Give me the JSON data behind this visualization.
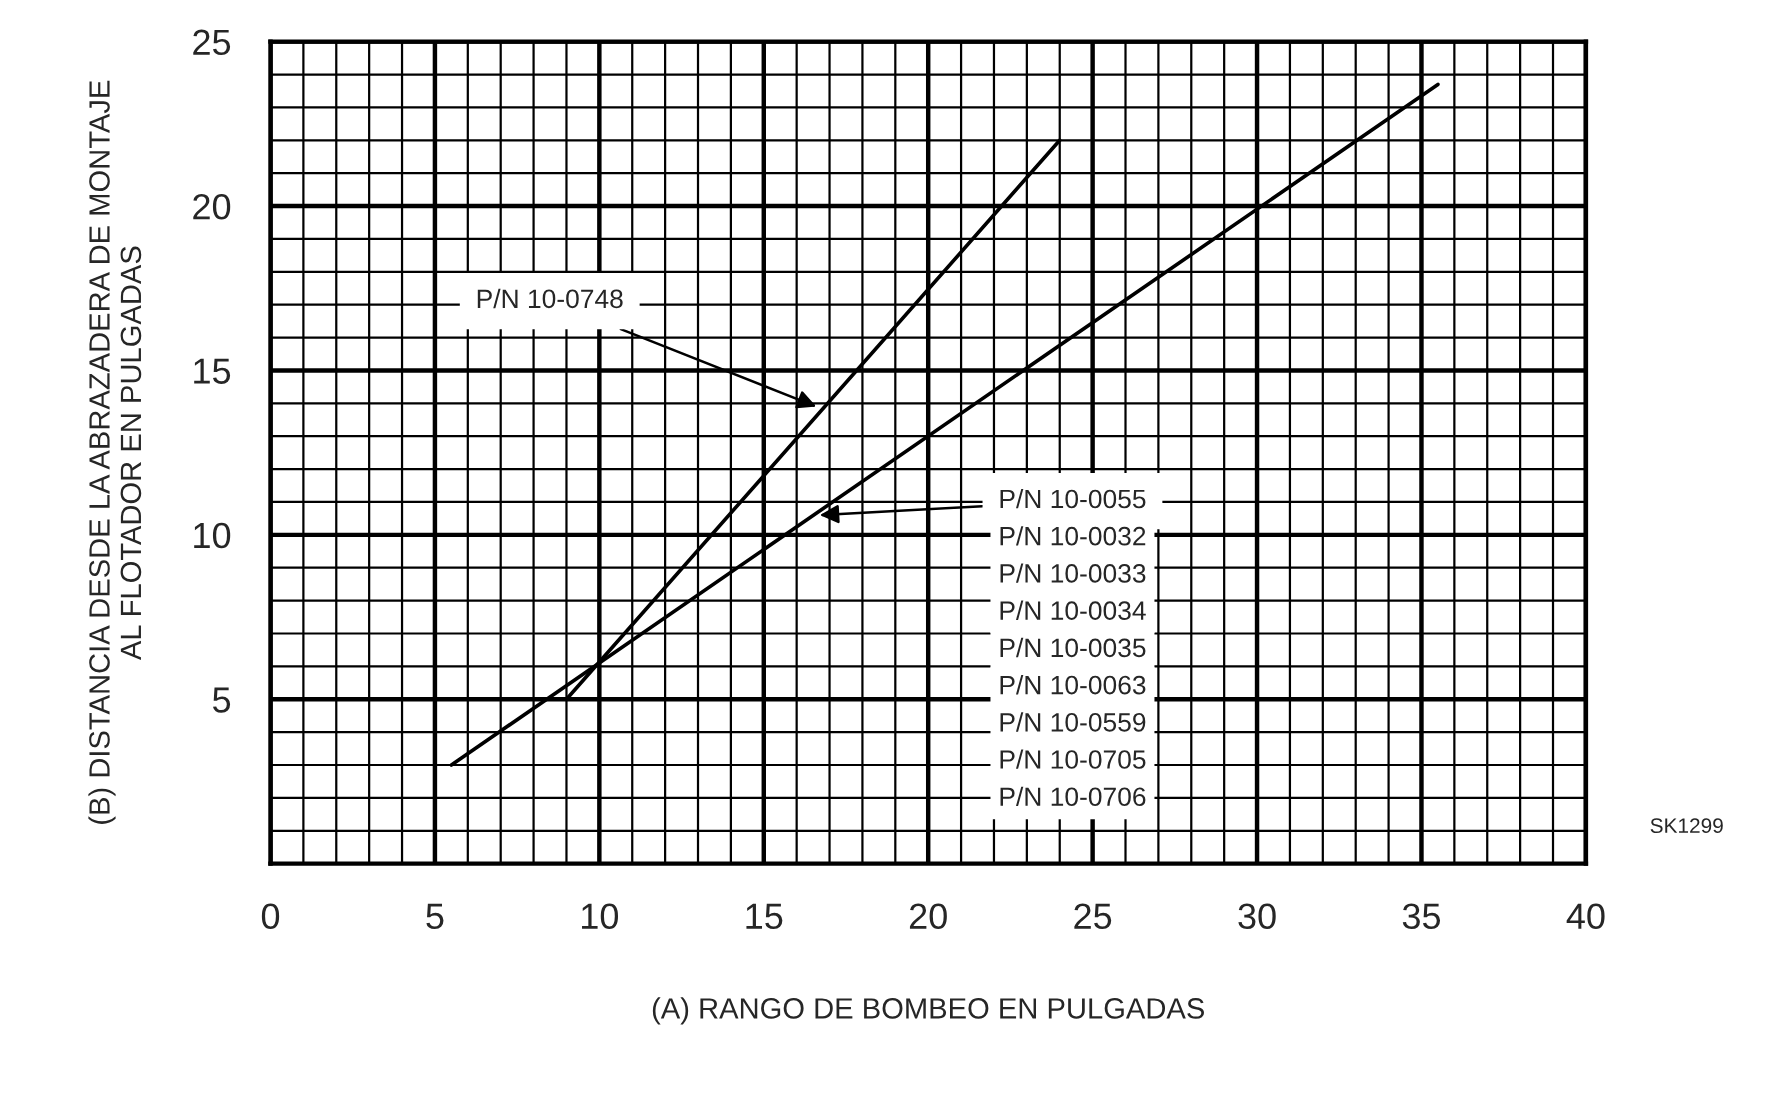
{
  "chart_data": {
    "type": "line",
    "xlabel": "(A) RANGO DE BOMBEO EN PULGADAS",
    "ylabel": "(B) DISTANCIA DESDE LA ABRAZADERA DE MONTAJE\nAL FLOTADOR EN PULGADAS",
    "series": [
      {
        "color": "#000000",
        "x": [
          9,
          24
        ],
        "values": [
          5,
          22
        ]
      },
      {
        "color": "#000000",
        "x": [
          5.5,
          35.5
        ],
        "values": [
          3,
          23.7
        ]
      }
    ],
    "xlim": [
      0,
      40
    ],
    "xticks": [
      0,
      5,
      10,
      15,
      20,
      25,
      30,
      35,
      40
    ],
    "ylim": [
      0,
      25
    ],
    "yticks": [
      5,
      10,
      15,
      20,
      25
    ],
    "grid": true,
    "marker": "none",
    "line_style": "solid",
    "annotations": [
      "SK1299",
      {
        "text": "P/N 10-0748",
        "x": 16.6,
        "y": 13.9
      },
      {
        "text": "P/N 10-0055",
        "x": 16.7,
        "y": 10.6
      },
      "P/N 10-0032",
      "P/N 10-0033",
      "P/N 10-0034",
      "P/N 10-0035",
      "P/N 10-0063",
      "P/N 10-0559",
      "P/N 10-0705",
      "P/N 10-0706"
    ]
  }
}
